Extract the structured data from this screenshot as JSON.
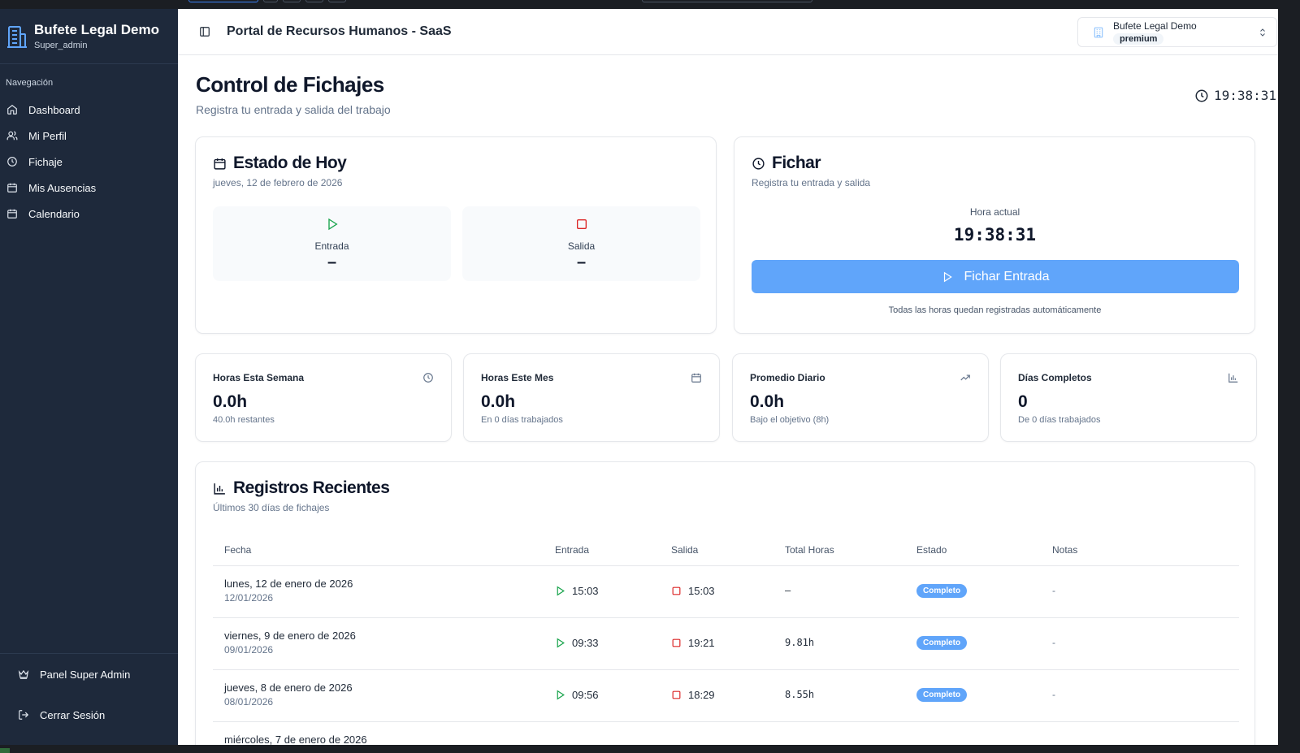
{
  "brand": {
    "title": "Bufete Legal Demo",
    "role": "Super_admin"
  },
  "nav": {
    "section_label": "Navegación",
    "items": [
      {
        "label": "Dashboard",
        "icon": "home-icon"
      },
      {
        "label": "Mi Perfil",
        "icon": "users-icon"
      },
      {
        "label": "Fichaje",
        "icon": "clock-icon"
      },
      {
        "label": "Mis Ausencias",
        "icon": "calendar-icon"
      },
      {
        "label": "Calendario",
        "icon": "calendar-icon"
      }
    ],
    "super_admin": "Panel Super Admin",
    "logout": "Cerrar Sesión"
  },
  "header": {
    "title": "Portal de Recursos Humanos - SaaS",
    "org_name": "Bufete Legal Demo",
    "org_plan": "premium"
  },
  "page": {
    "title": "Control de Fichajes",
    "subtitle": "Registra tu entrada y salida del trabajo",
    "clock": "19:38:31"
  },
  "today": {
    "title": "Estado de Hoy",
    "date": "jueves, 12 de febrero de 2026",
    "entrada_label": "Entrada",
    "entrada_value": "–",
    "salida_label": "Salida",
    "salida_value": "–"
  },
  "fichar": {
    "title": "Fichar",
    "subtitle": "Registra tu entrada y salida",
    "current_label": "Hora actual",
    "current_time": "19:38:31",
    "button": "Fichar Entrada",
    "note": "Todas las horas quedan registradas automáticamente"
  },
  "stats": [
    {
      "title": "Horas Esta Semana",
      "value": "0.0h",
      "sub": "40.0h restantes",
      "icon": "clock-icon"
    },
    {
      "title": "Horas Este Mes",
      "value": "0.0h",
      "sub": "En 0 días trabajados",
      "icon": "calendar-icon"
    },
    {
      "title": "Promedio Diario",
      "value": "0.0h",
      "sub": "Bajo el objetivo (8h)",
      "icon": "trending-up-icon"
    },
    {
      "title": "Días Completos",
      "value": "0",
      "sub": "De 0 días trabajados",
      "icon": "bar-chart-icon"
    }
  ],
  "records": {
    "title": "Registros Recientes",
    "subtitle": "Últimos 30 días de fichajes",
    "columns": [
      "Fecha",
      "Entrada",
      "Salida",
      "Total Horas",
      "Estado",
      "Notas"
    ],
    "rows": [
      {
        "date": "lunes, 12 de enero de 2026",
        "date_short": "12/01/2026",
        "in": "15:03",
        "out": "15:03",
        "total": "–",
        "status": "Completo",
        "notes": "-"
      },
      {
        "date": "viernes, 9 de enero de 2026",
        "date_short": "09/01/2026",
        "in": "09:33",
        "out": "19:21",
        "total": "9.81h",
        "status": "Completo",
        "notes": "-"
      },
      {
        "date": "jueves, 8 de enero de 2026",
        "date_short": "08/01/2026",
        "in": "09:56",
        "out": "18:29",
        "total": "8.55h",
        "status": "Completo",
        "notes": "-"
      },
      {
        "date": "miércoles, 7 de enero de 2026",
        "date_short": "",
        "in": "",
        "out": "",
        "total": "",
        "status": "",
        "notes": ""
      }
    ]
  },
  "colors": {
    "sidebar": "#1e293b",
    "accent": "#60a5fa",
    "green": "#16a34a",
    "red": "#dc2626"
  }
}
